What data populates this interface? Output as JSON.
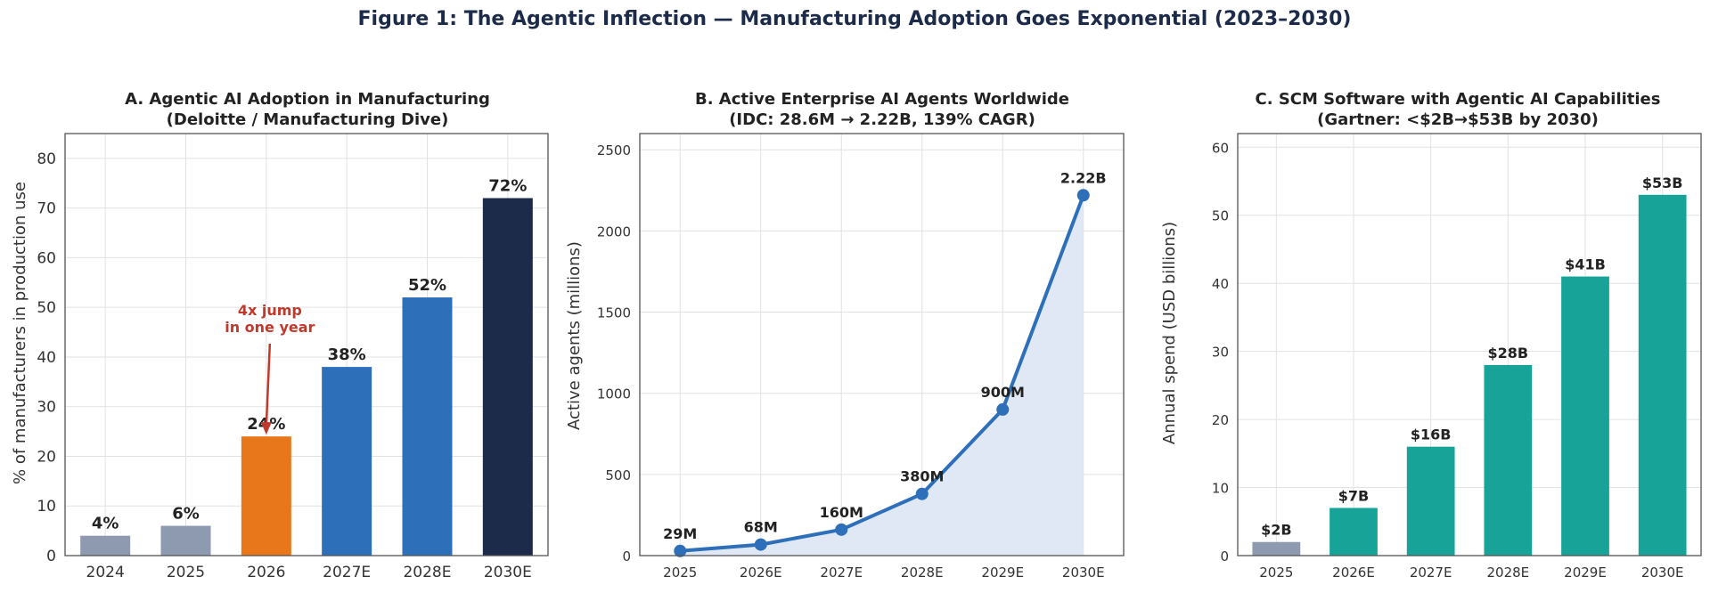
{
  "figure": {
    "suptitle": "Figure 1: The Agentic Inflection — Manufacturing Adoption Goes Exponential (2023–2030)"
  },
  "chart_data": [
    {
      "type": "bar",
      "title": "A. Agentic AI Adoption in Manufacturing",
      "subtitle": "(Deloitte / Manufacturing Dive)",
      "ylabel": "% of manufacturers in production use",
      "categories": [
        "2024",
        "2025",
        "2026",
        "2027E",
        "2028E",
        "2030E"
      ],
      "values": [
        4,
        6,
        24,
        38,
        52,
        72
      ],
      "value_labels": [
        "4%",
        "6%",
        "24%",
        "38%",
        "52%",
        "72%"
      ],
      "colors": [
        "#8e9ab0",
        "#8e9ab0",
        "#e8761a",
        "#2e6fba",
        "#2e6fba",
        "#1c2b4a"
      ],
      "ylim": [
        0,
        85
      ],
      "yticks": [
        0,
        10,
        20,
        30,
        40,
        50,
        60,
        70,
        80
      ],
      "grid": true,
      "annotation": {
        "lines": [
          "4x jump",
          "in one year"
        ],
        "target_category": "2026",
        "color": "#c0392b"
      }
    },
    {
      "type": "area",
      "title": "B. Active Enterprise AI Agents Worldwide",
      "subtitle": "(IDC: 28.6M → 2.22B, 139% CAGR)",
      "ylabel": "Active agents (millions)",
      "categories": [
        "2025",
        "2026E",
        "2027E",
        "2028E",
        "2029E",
        "2030E"
      ],
      "values": [
        28.6,
        68,
        160,
        380,
        900,
        2220
      ],
      "value_labels": [
        "29M",
        "68M",
        "160M",
        "380M",
        "900M",
        "2.22B"
      ],
      "line_color": "#2e6fba",
      "fill_color": "#dfe8f4",
      "ylim": [
        0,
        2600
      ],
      "yticks": [
        0,
        500,
        1000,
        1500,
        2000,
        2500
      ],
      "grid": true
    },
    {
      "type": "bar",
      "title": "C. SCM Software with Agentic AI Capabilities",
      "subtitle": "(Gartner: <$2B→$53B by 2030)",
      "ylabel": "Annual spend (USD billions)",
      "categories": [
        "2025",
        "2026E",
        "2027E",
        "2028E",
        "2029E",
        "2030E"
      ],
      "values": [
        2,
        7,
        16,
        28,
        41,
        53
      ],
      "value_labels": [
        "$2B",
        "$7B",
        "$16B",
        "$28B",
        "$41B",
        "$53B"
      ],
      "colors": [
        "#8e9ab0",
        "#17a398",
        "#17a398",
        "#17a398",
        "#17a398",
        "#17a398"
      ],
      "ylim": [
        0,
        62
      ],
      "yticks": [
        0,
        10,
        20,
        30,
        40,
        50,
        60
      ],
      "grid": true
    }
  ]
}
